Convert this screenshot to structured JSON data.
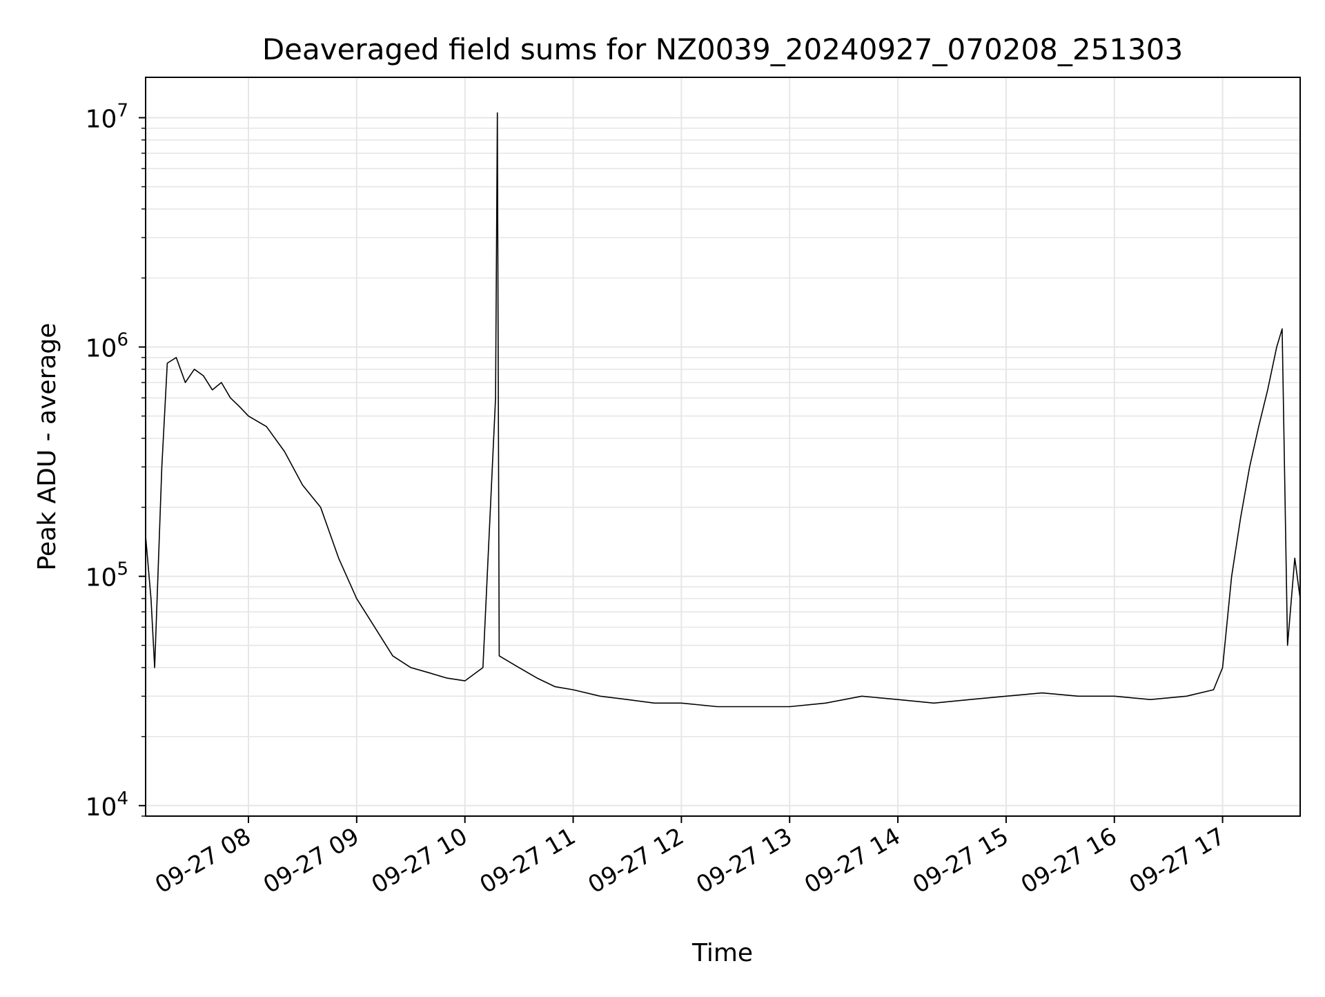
{
  "chart_data": {
    "type": "line",
    "title": "Deaveraged field sums for NZ0039_20240927_070208_251303",
    "xlabel": "Time",
    "ylabel": "Peak ADU - average",
    "yscale": "log",
    "ylim": [
      9000,
      15000000
    ],
    "xlim": [
      "2024-09-27 07:03",
      "2024-09-27 17:43"
    ],
    "y_ticks": [
      {
        "value": 10000,
        "base": "10",
        "exp": "4"
      },
      {
        "value": 100000,
        "base": "10",
        "exp": "5"
      },
      {
        "value": 1000000,
        "base": "10",
        "exp": "6"
      },
      {
        "value": 10000000,
        "base": "10",
        "exp": "7"
      }
    ],
    "x_ticks": [
      {
        "time": "2024-09-27 08:00",
        "label": "09-27 08"
      },
      {
        "time": "2024-09-27 09:00",
        "label": "09-27 09"
      },
      {
        "time": "2024-09-27 10:00",
        "label": "09-27 10"
      },
      {
        "time": "2024-09-27 11:00",
        "label": "09-27 11"
      },
      {
        "time": "2024-09-27 12:00",
        "label": "09-27 12"
      },
      {
        "time": "2024-09-27 13:00",
        "label": "09-27 13"
      },
      {
        "time": "2024-09-27 14:00",
        "label": "09-27 14"
      },
      {
        "time": "2024-09-27 15:00",
        "label": "09-27 15"
      },
      {
        "time": "2024-09-27 16:00",
        "label": "09-27 16"
      },
      {
        "time": "2024-09-27 17:00",
        "label": "09-27 17"
      }
    ],
    "grid": true,
    "line_color": "#000000",
    "grid_color": "#e6e6e6",
    "series": [
      {
        "x": [
          "2024-09-27 07:03",
          "2024-09-27 07:06",
          "2024-09-27 07:08",
          "2024-09-27 07:12",
          "2024-09-27 07:15",
          "2024-09-27 07:20",
          "2024-09-27 07:25",
          "2024-09-27 07:30",
          "2024-09-27 07:35",
          "2024-09-27 07:40",
          "2024-09-27 07:45",
          "2024-09-27 07:50",
          "2024-09-27 07:55",
          "2024-09-27 08:00",
          "2024-09-27 08:10",
          "2024-09-27 08:20",
          "2024-09-27 08:30",
          "2024-09-27 08:40",
          "2024-09-27 08:50",
          "2024-09-27 09:00",
          "2024-09-27 09:10",
          "2024-09-27 09:20",
          "2024-09-27 09:30",
          "2024-09-27 09:40",
          "2024-09-27 09:50",
          "2024-09-27 10:00",
          "2024-09-27 10:10",
          "2024-09-27 10:17",
          "2024-09-27 10:18",
          "2024-09-27 10:19",
          "2024-09-27 10:30",
          "2024-09-27 10:40",
          "2024-09-27 10:50",
          "2024-09-27 11:00",
          "2024-09-27 11:15",
          "2024-09-27 11:30",
          "2024-09-27 11:45",
          "2024-09-27 12:00",
          "2024-09-27 12:20",
          "2024-09-27 12:40",
          "2024-09-27 13:00",
          "2024-09-27 13:20",
          "2024-09-27 13:40",
          "2024-09-27 14:00",
          "2024-09-27 14:20",
          "2024-09-27 14:40",
          "2024-09-27 15:00",
          "2024-09-27 15:20",
          "2024-09-27 15:40",
          "2024-09-27 16:00",
          "2024-09-27 16:20",
          "2024-09-27 16:40",
          "2024-09-27 16:55",
          "2024-09-27 17:00",
          "2024-09-27 17:05",
          "2024-09-27 17:10",
          "2024-09-27 17:15",
          "2024-09-27 17:20",
          "2024-09-27 17:25",
          "2024-09-27 17:30",
          "2024-09-27 17:33",
          "2024-09-27 17:36",
          "2024-09-27 17:40",
          "2024-09-27 17:43"
        ],
        "values": [
          150000,
          80000,
          40000,
          300000,
          850000,
          900000,
          700000,
          800000,
          750000,
          650000,
          700000,
          600000,
          550000,
          500000,
          450000,
          350000,
          250000,
          200000,
          120000,
          80000,
          60000,
          45000,
          40000,
          38000,
          36000,
          35000,
          40000,
          600000,
          10500000,
          45000,
          40000,
          36000,
          33000,
          32000,
          30000,
          29000,
          28000,
          28000,
          27000,
          27000,
          27000,
          28000,
          30000,
          29000,
          28000,
          29000,
          30000,
          31000,
          30000,
          30000,
          29000,
          30000,
          32000,
          40000,
          100000,
          180000,
          300000,
          450000,
          650000,
          1000000,
          1200000,
          50000,
          120000,
          80000
        ]
      }
    ]
  }
}
